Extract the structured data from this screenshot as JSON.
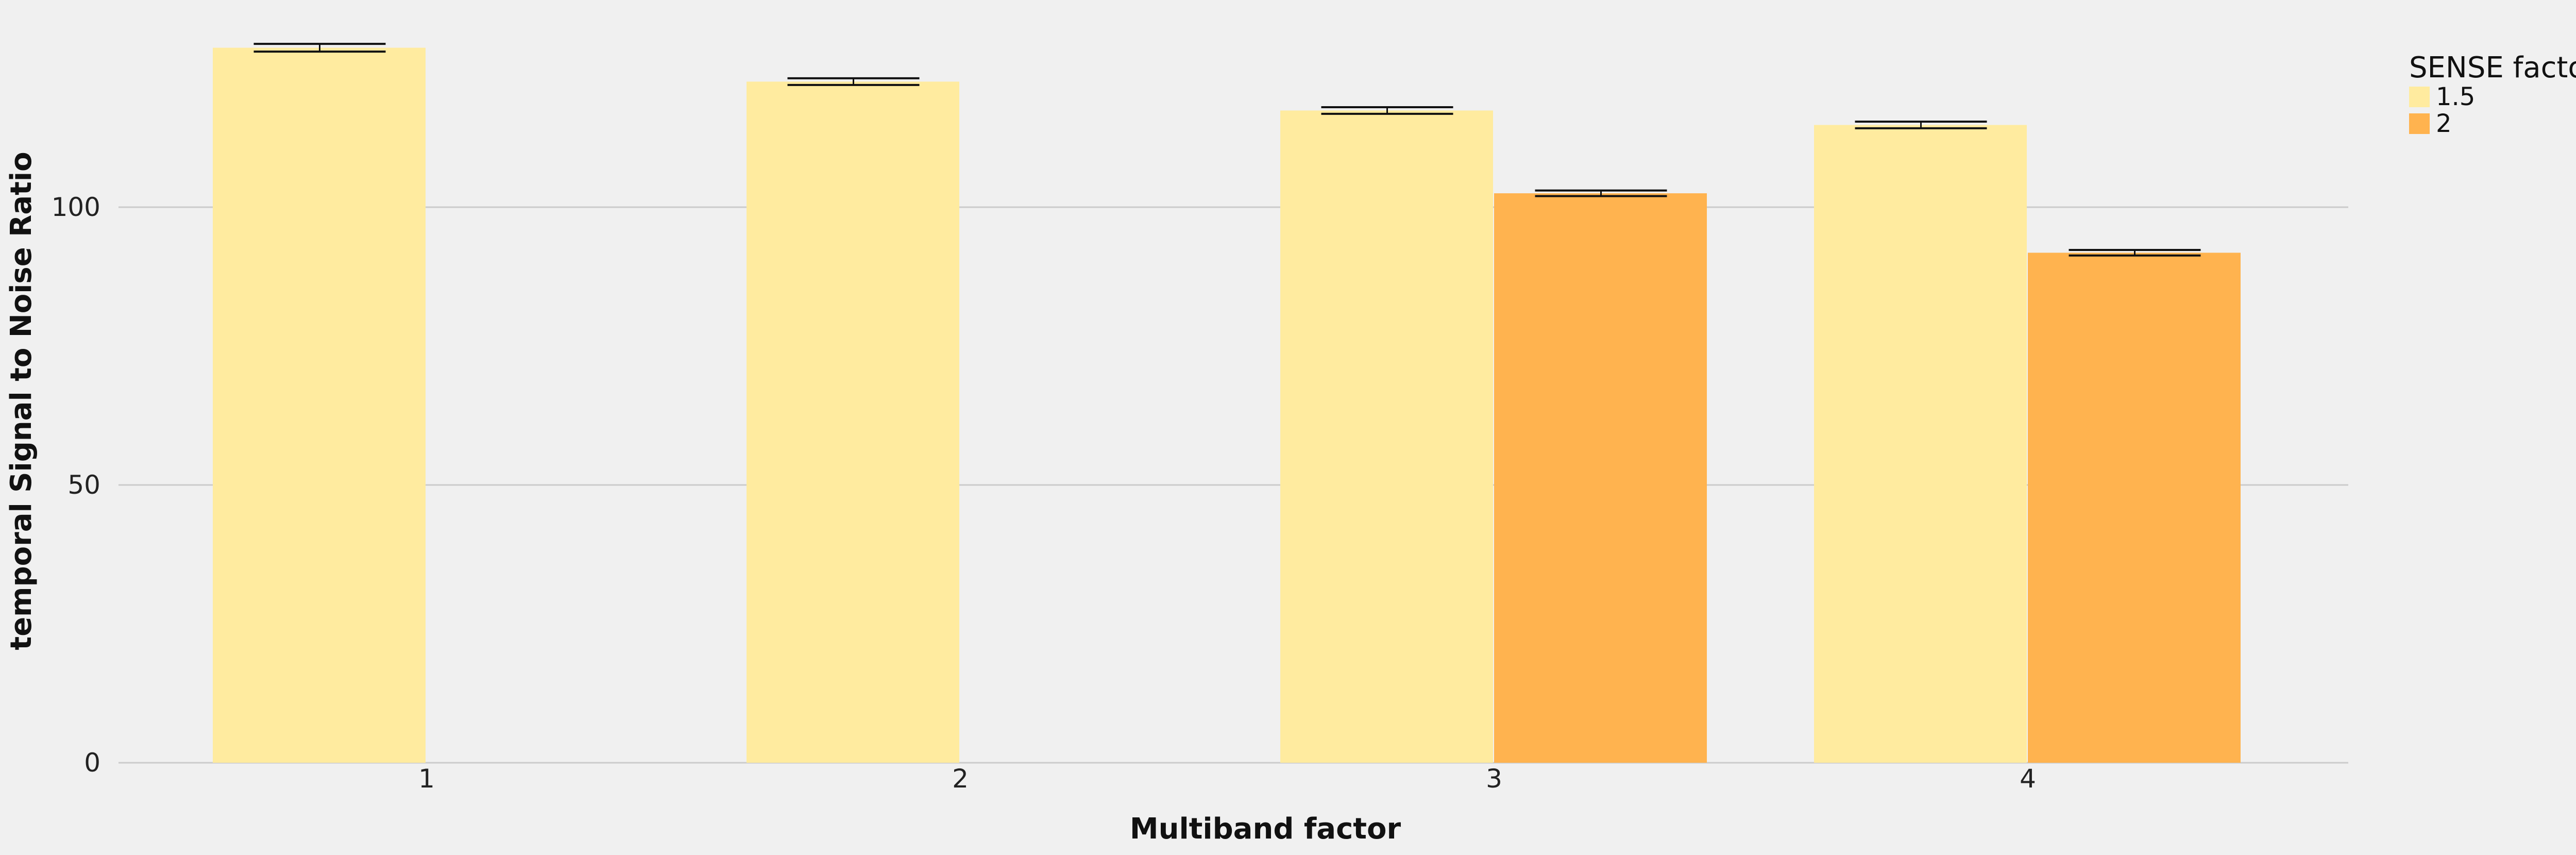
{
  "chart_data": {
    "type": "bar",
    "title": "",
    "xlabel": "Multiband factor",
    "ylabel": "temporal Signal to Noise Ratio",
    "categories": [
      "1",
      "2",
      "3",
      "4"
    ],
    "ylim": [
      0,
      130
    ],
    "yticks": [
      0,
      50,
      100
    ],
    "grid": "horizontal",
    "legend": {
      "title": "SENSE factor",
      "placement": "right"
    },
    "series": [
      {
        "name": "1.5",
        "color": "#ffeb9f",
        "values": [
          128.7,
          122.6,
          117.4,
          114.8
        ],
        "errors": [
          0.7,
          0.6,
          0.6,
          0.6
        ]
      },
      {
        "name": "2",
        "color": "#ffb34f",
        "values": [
          null,
          null,
          102.5,
          91.8
        ],
        "errors": [
          null,
          null,
          0.5,
          0.5
        ]
      }
    ]
  }
}
